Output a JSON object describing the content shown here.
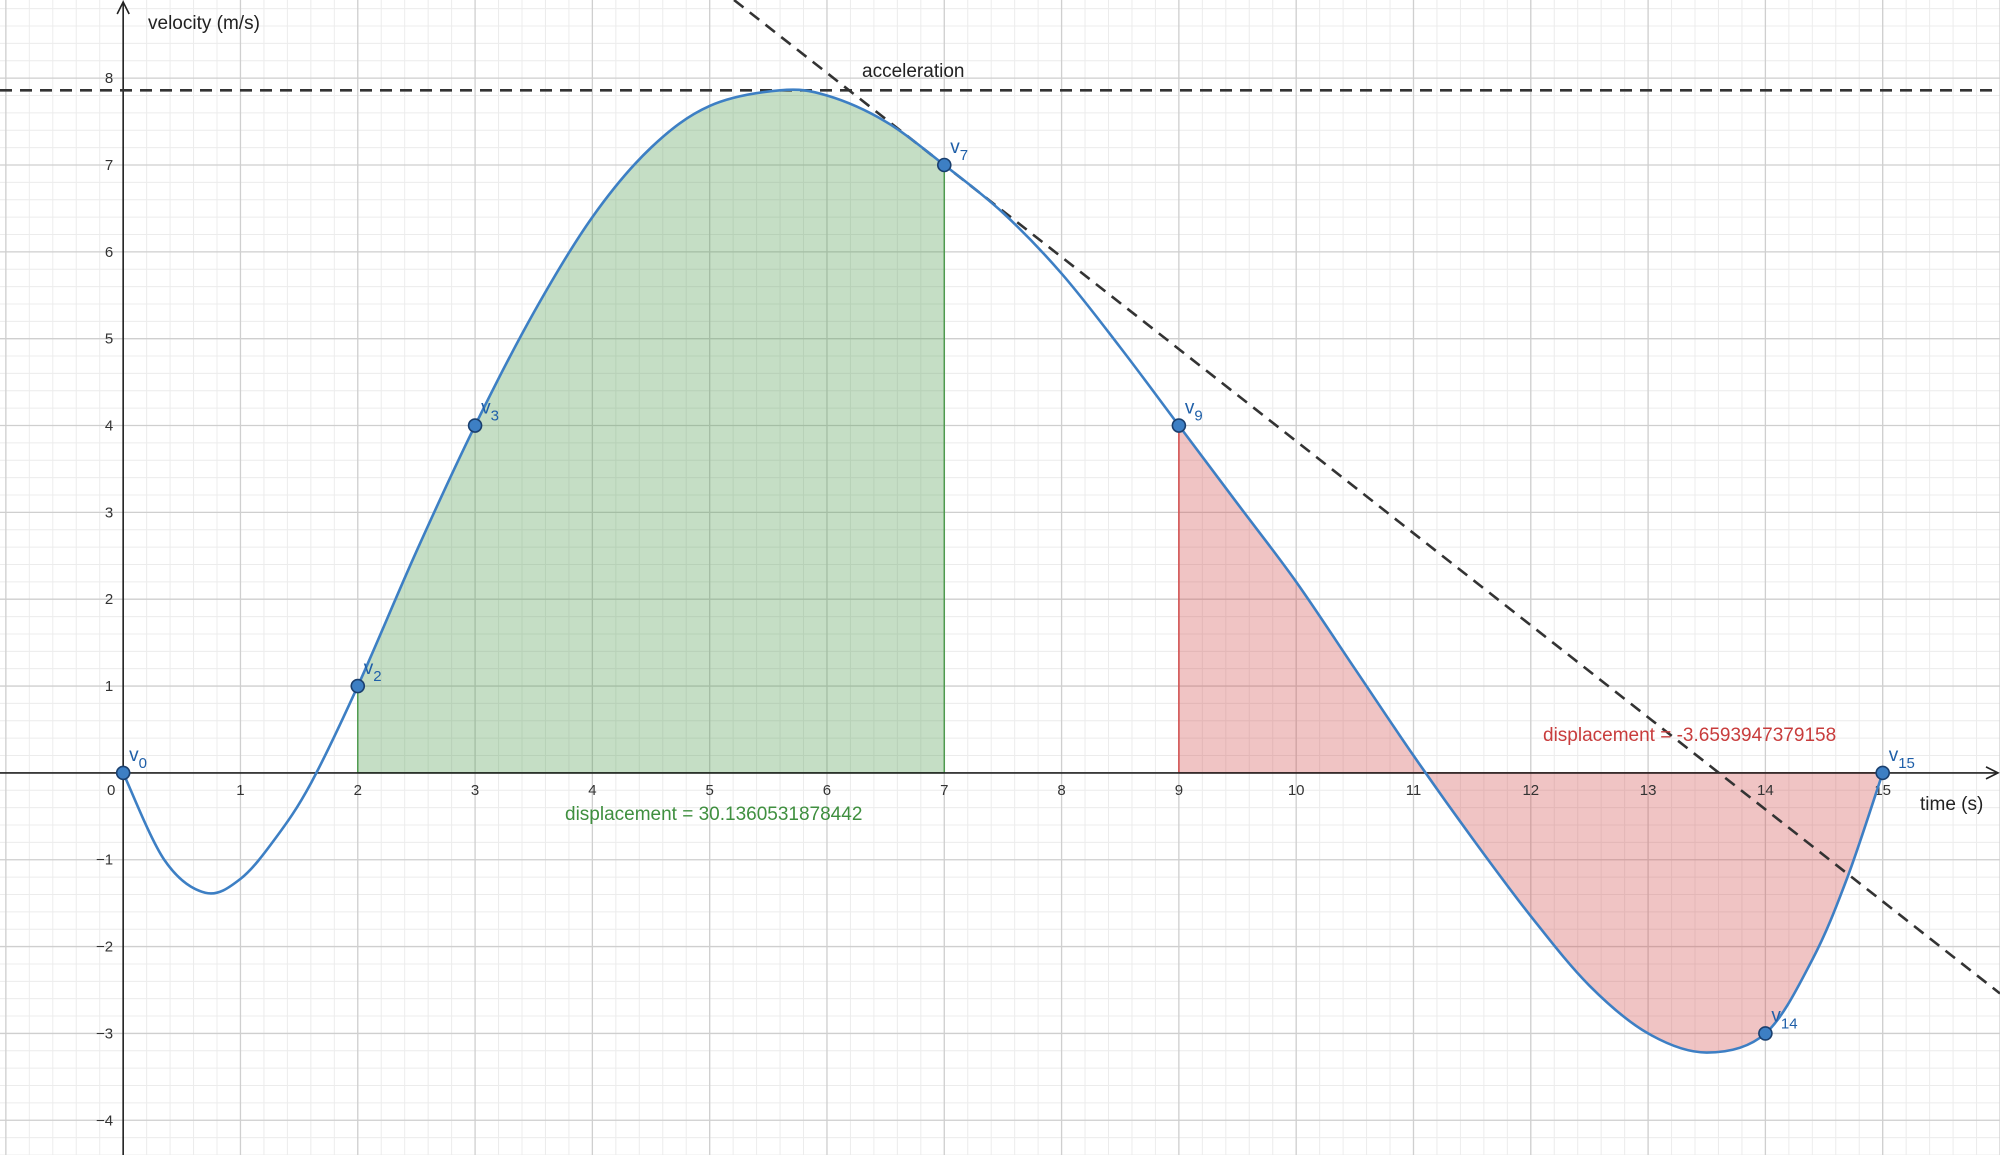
{
  "chart_data": {
    "type": "line",
    "xlabel": "time (s)",
    "ylabel": "velocity (m/s)",
    "xlim": [
      -1.05,
      16.0
    ],
    "ylim": [
      -4.4,
      8.9
    ],
    "grid": true,
    "x_ticks": [
      0,
      1,
      2,
      3,
      4,
      5,
      6,
      7,
      8,
      9,
      10,
      11,
      12,
      13,
      14,
      15
    ],
    "y_ticks": [
      -4,
      -3,
      -2,
      -1,
      1,
      2,
      3,
      4,
      5,
      6,
      7,
      8
    ],
    "x_tick_labels": [
      "0",
      "1",
      "2",
      "3",
      "4",
      "5",
      "6",
      "7",
      "8",
      "9",
      "10",
      "11",
      "12",
      "13",
      "14",
      "15"
    ],
    "y_tick_labels": [
      "−4",
      "−3",
      "−2",
      "−1",
      "1",
      "2",
      "3",
      "4",
      "5",
      "6",
      "7",
      "8"
    ],
    "series": [
      {
        "type": "curve",
        "color": "#3d7fc4",
        "points": [
          [
            0,
            0
          ],
          [
            0.35,
            -1.0
          ],
          [
            0.7,
            -1.38
          ],
          [
            1.0,
            -1.22
          ],
          [
            1.3,
            -0.75
          ],
          [
            1.6,
            -0.12
          ],
          [
            2,
            1
          ],
          [
            2.5,
            2.55
          ],
          [
            3,
            4
          ],
          [
            3.5,
            5.3
          ],
          [
            4,
            6.4
          ],
          [
            4.5,
            7.2
          ],
          [
            5,
            7.68
          ],
          [
            5.6,
            7.86
          ],
          [
            6,
            7.8
          ],
          [
            6.5,
            7.5
          ],
          [
            7,
            7
          ],
          [
            7.5,
            6.45
          ],
          [
            8,
            5.75
          ],
          [
            8.5,
            4.9
          ],
          [
            9,
            4
          ],
          [
            9.5,
            3.1
          ],
          [
            10,
            2.2
          ],
          [
            10.5,
            1.2
          ],
          [
            11,
            0.2
          ],
          [
            11.5,
            -0.75
          ],
          [
            12,
            -1.65
          ],
          [
            12.5,
            -2.45
          ],
          [
            13,
            -3.0
          ],
          [
            13.5,
            -3.22
          ],
          [
            14,
            -3
          ],
          [
            14.4,
            -2.15
          ],
          [
            14.7,
            -1.2
          ],
          [
            15,
            0
          ]
        ]
      }
    ],
    "points": [
      {
        "name": "v",
        "sub": "0",
        "x": 0,
        "y": 0
      },
      {
        "name": "v",
        "sub": "2",
        "x": 2,
        "y": 1
      },
      {
        "name": "v",
        "sub": "3",
        "x": 3,
        "y": 4
      },
      {
        "name": "v",
        "sub": "7",
        "x": 7,
        "y": 7
      },
      {
        "name": "v",
        "sub": "9",
        "x": 9,
        "y": 4
      },
      {
        "name": "v",
        "sub": "14",
        "x": 14,
        "y": -3
      },
      {
        "name": "v",
        "sub": "15",
        "x": 15,
        "y": 0
      }
    ],
    "tangent_line": {
      "label": "acceleration",
      "through": [
        7,
        7
      ],
      "slope": -1.06,
      "color": "#333333"
    },
    "max_line": {
      "y": 7.86,
      "color": "#333333"
    },
    "areas": [
      {
        "from": 2,
        "to": 7,
        "color": "#4f9a4f",
        "label": "displacement = 30.1360531878442"
      },
      {
        "from": 9,
        "to": 15,
        "color": "#d24b4b",
        "label": "displacement = -3.6593947379158"
      }
    ]
  }
}
